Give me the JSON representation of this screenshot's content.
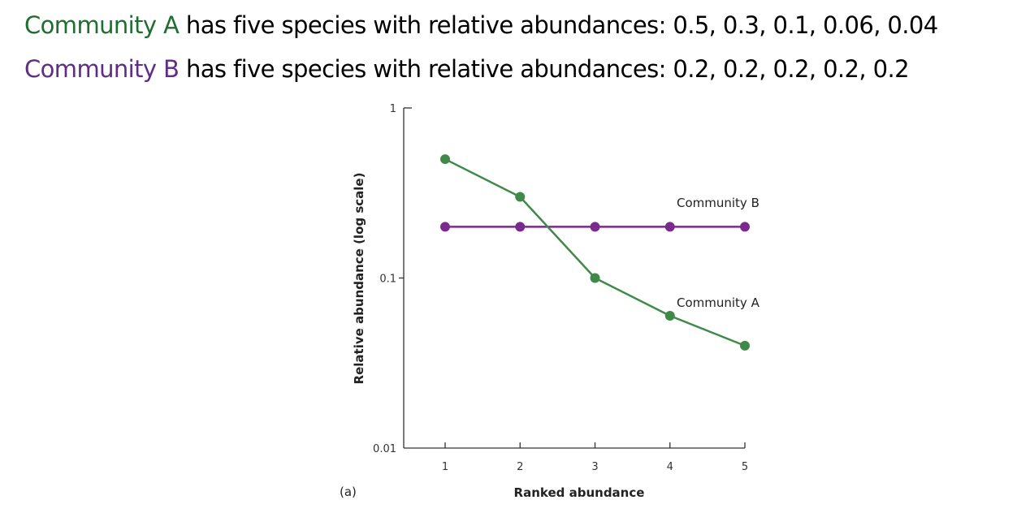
{
  "text": {
    "line1": {
      "name": "Community A",
      "rest": " has five species with relative abundances: 0.5, 0.3, 0.1, 0.06, 0.04"
    },
    "line2": {
      "name": "Community B",
      "rest": " has five species with relative abundances: 0.2, 0.2, 0.2, 0.2, 0.2"
    }
  },
  "chart_data": {
    "type": "line",
    "panel_label": "(a)",
    "xlabel": "Ranked abundance",
    "ylabel": "Relative abundance (log scale)",
    "y_scale": "log",
    "ylim": [
      0.01,
      1
    ],
    "xlim": [
      1,
      5
    ],
    "x": [
      1,
      2,
      3,
      4,
      5
    ],
    "x_tick_labels": [
      "1",
      "2",
      "3",
      "4",
      "5"
    ],
    "y_ticks": [
      1,
      0.1,
      0.01
    ],
    "y_tick_labels": [
      "1",
      "0.1",
      "0.01"
    ],
    "grid": false,
    "series": [
      {
        "name": "Community A",
        "values": [
          0.5,
          0.3,
          0.1,
          0.06,
          0.04
        ],
        "color": "#3f8a48"
      },
      {
        "name": "Community B",
        "values": [
          0.2,
          0.2,
          0.2,
          0.2,
          0.2
        ],
        "color": "#7a2a8c"
      }
    ]
  }
}
